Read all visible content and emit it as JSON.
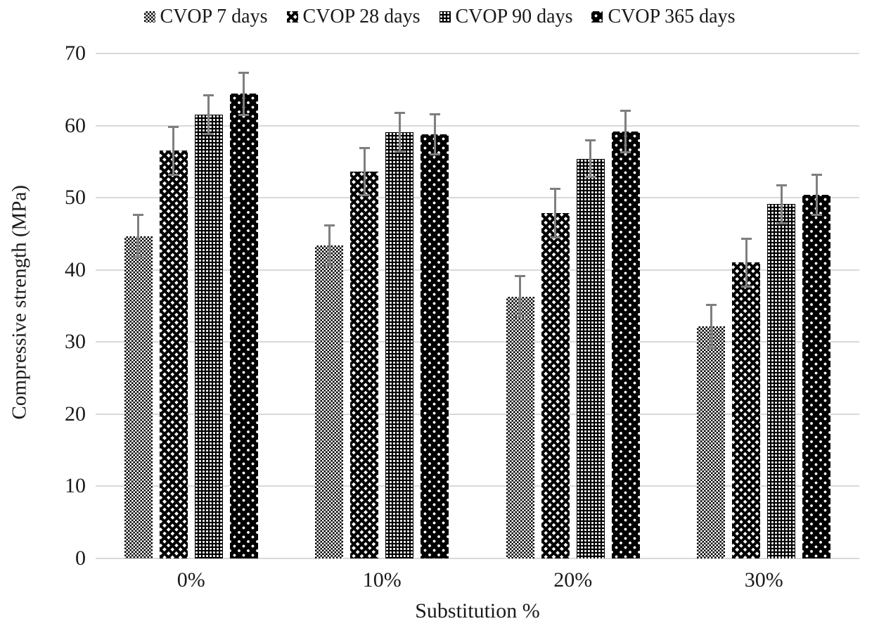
{
  "chart_data": {
    "type": "bar",
    "title": "",
    "xlabel": "Substitution %",
    "ylabel": "Compressive strength (MPa)",
    "categories": [
      "0%",
      "10%",
      "20%",
      "30%"
    ],
    "series": [
      {
        "name": "CVOP 7 days",
        "pattern": "checker-fine",
        "values": [
          44.7,
          43.4,
          36.3,
          32.2
        ],
        "errors": [
          3.1,
          2.9,
          3.0,
          3.1
        ]
      },
      {
        "name": "CVOP 28 days",
        "pattern": "trellis",
        "values": [
          56.5,
          53.6,
          47.9,
          41.0
        ],
        "errors": [
          3.5,
          3.4,
          3.5,
          3.5
        ]
      },
      {
        "name": "CVOP 90 days",
        "pattern": "dot-grid",
        "values": [
          61.5,
          59.1,
          55.4,
          49.1
        ],
        "errors": [
          2.8,
          2.8,
          2.7,
          2.8
        ]
      },
      {
        "name": "CVOP 365 days",
        "pattern": "dot-sparse",
        "values": [
          64.4,
          58.8,
          59.2,
          50.4
        ],
        "errors": [
          3.1,
          2.9,
          3.0,
          2.9
        ]
      }
    ],
    "ylim": [
      0,
      70
    ],
    "ytick_step": 10,
    "yticks": [
      "0",
      "10",
      "20",
      "30",
      "40",
      "50",
      "60",
      "70"
    ],
    "grid": true,
    "legend_position": "top",
    "colors": {
      "bar_ink": "#000000",
      "error_bar": "#7f7f7f",
      "gridline": "#d9d9d9",
      "text": "#1a1a1a",
      "background": "#ffffff"
    }
  }
}
